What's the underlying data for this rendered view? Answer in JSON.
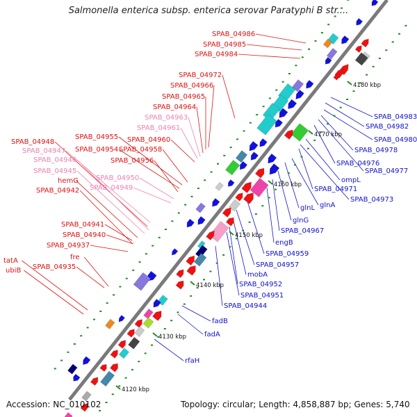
{
  "title": "Salmonella enterica subsp. enterica serovar Paratyphi B str....",
  "accession_label": "Accession: NC_010102",
  "summary_label": "Topology: circular; Length: 4,858,887 bp; Genes: 5,740",
  "colors": {
    "forward_gene": "#ee1111",
    "reverse_gene": "#1111dd",
    "backbone": "#777777",
    "tick": "#228822",
    "pink_gene": "#f5a0c8",
    "cyan_gene": "#22cccc"
  },
  "scale": {
    "unit": "kbp",
    "labels": [
      "4180 kbp",
      "4170 kbp",
      "4160 kbp",
      "4150 kbp",
      "4140 kbp",
      "4130 kbp",
      "4120 kbp"
    ]
  },
  "forward_labels": [
    {
      "text": "SPAB_04986",
      "tone": "red"
    },
    {
      "text": "SPAB_04985",
      "tone": "red"
    },
    {
      "text": "SPAB_04984",
      "tone": "red"
    },
    {
      "text": "SPAB_04972",
      "tone": "red"
    },
    {
      "text": "SPAB_04966",
      "tone": "red"
    },
    {
      "text": "SPAB_04965",
      "tone": "red"
    },
    {
      "text": "SPAB_04964",
      "tone": "red"
    },
    {
      "text": "SPAB_04963",
      "tone": "pink"
    },
    {
      "text": "SPAB_04961",
      "tone": "pink"
    },
    {
      "text": "SPAB_04960",
      "tone": "red"
    },
    {
      "text": "SPAB_04955",
      "tone": "red"
    },
    {
      "text": "SPAB_04954",
      "tone": "red"
    },
    {
      "text": "SPAB_04958",
      "tone": "red"
    },
    {
      "text": "SPAB_04956",
      "tone": "red"
    },
    {
      "text": "SPAB_04948",
      "tone": "red"
    },
    {
      "text": "SPAB_04947",
      "tone": "pink"
    },
    {
      "text": "SPAB_04946",
      "tone": "pink"
    },
    {
      "text": "SPAB_04945",
      "tone": "pink"
    },
    {
      "text": "SPAB_04950",
      "tone": "pink"
    },
    {
      "text": "SPAB_04949",
      "tone": "pink"
    },
    {
      "text": "hemG",
      "tone": "red"
    },
    {
      "text": "SPAB_04942",
      "tone": "red"
    },
    {
      "text": "SPAB_04941",
      "tone": "red"
    },
    {
      "text": "SPAB_04940",
      "tone": "red"
    },
    {
      "text": "SPAB_04937",
      "tone": "red"
    },
    {
      "text": "fre",
      "tone": "red"
    },
    {
      "text": "tatA",
      "tone": "red"
    },
    {
      "text": "SPAB_04935",
      "tone": "red"
    },
    {
      "text": "ubiB",
      "tone": "red"
    }
  ],
  "reverse_labels": [
    {
      "text": "SPAB_04983"
    },
    {
      "text": "SPAB_04982"
    },
    {
      "text": "SPAB_04980"
    },
    {
      "text": "SPAB_04978"
    },
    {
      "text": "SPAB_04976"
    },
    {
      "text": "SPAB_04977"
    },
    {
      "text": "ompL"
    },
    {
      "text": "SPAB_04971"
    },
    {
      "text": "SPAB_04973"
    },
    {
      "text": "glnA"
    },
    {
      "text": "glnL"
    },
    {
      "text": "glnG"
    },
    {
      "text": "SPAB_04967"
    },
    {
      "text": "engB"
    },
    {
      "text": "SPAB_04959"
    },
    {
      "text": "SPAB_04957"
    },
    {
      "text": "mobA"
    },
    {
      "text": "SPAB_04952"
    },
    {
      "text": "SPAB_04951"
    },
    {
      "text": "SPAB_04944"
    },
    {
      "text": "fadB"
    },
    {
      "text": "fadA"
    },
    {
      "text": "rfaH"
    }
  ]
}
